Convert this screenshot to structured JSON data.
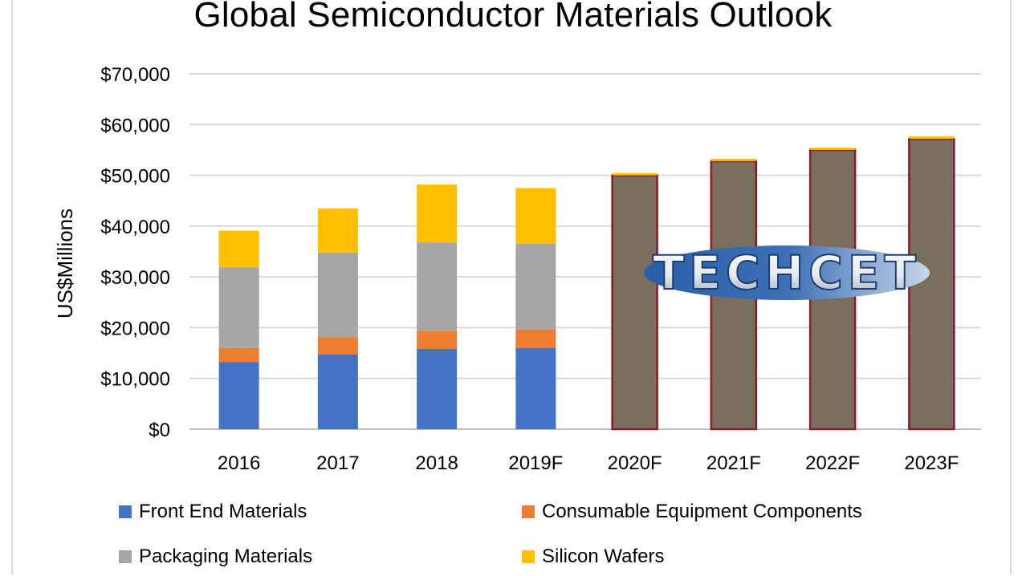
{
  "chart_data": {
    "type": "bar",
    "stacked": true,
    "title": "Global Semiconductor Materials Outlook",
    "ylabel": "US$Millions",
    "xlabel": "",
    "ylim": [
      0,
      70000
    ],
    "yticks": [
      0,
      10000,
      20000,
      30000,
      40000,
      50000,
      60000,
      70000
    ],
    "ytick_labels": [
      "$0",
      "$10,000",
      "$20,000",
      "$30,000",
      "$40,000",
      "$50,000",
      "$60,000",
      "$70,000"
    ],
    "categories": [
      "2016",
      "2017",
      "2018",
      "2019F",
      "2020F",
      "2021F",
      "2022F",
      "2023F"
    ],
    "grid": true,
    "legend_position": "bottom",
    "series": [
      {
        "name": "Front End Materials",
        "color": "#4472c4",
        "values": [
          13200,
          14700,
          15800,
          16000,
          null,
          null,
          null,
          null
        ]
      },
      {
        "name": "Consumable Equipment Components",
        "color": "#ed7d31",
        "values": [
          2800,
          3400,
          3600,
          3600,
          null,
          null,
          null,
          null
        ]
      },
      {
        "name": "Packaging Materials",
        "color": "#a5a5a5",
        "values": [
          15900,
          16700,
          17400,
          16900,
          null,
          null,
          null,
          null
        ]
      },
      {
        "name": "Silicon Wafers",
        "color": "#ffc000",
        "values": [
          7200,
          8700,
          11400,
          11000,
          null,
          null,
          null,
          null
        ]
      }
    ],
    "forecast_totals": {
      "categories": [
        "2020F",
        "2021F",
        "2022F",
        "2023F"
      ],
      "values": [
        50000,
        52800,
        55000,
        57200
      ],
      "color": "#7a6e5e",
      "border_color": "#8b1a2a",
      "cap_color": "#ffc000"
    },
    "logo_text": "TECHCET"
  }
}
